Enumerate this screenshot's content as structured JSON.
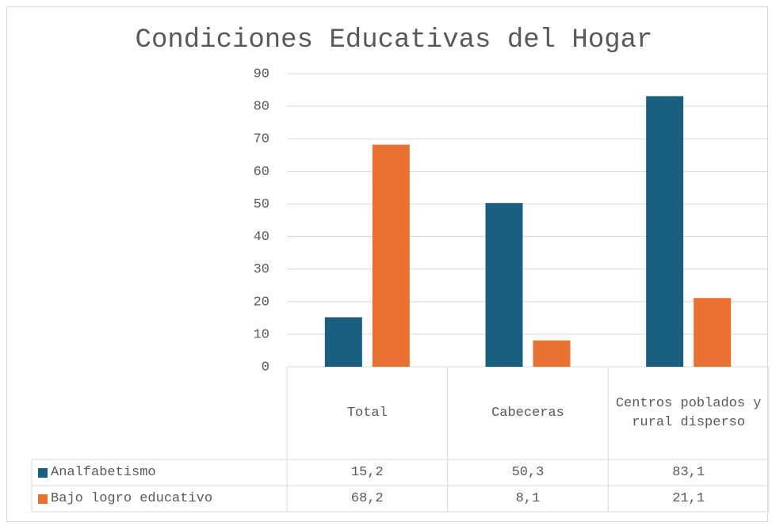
{
  "chart_data": {
    "type": "bar",
    "title": "Condiciones Educativas del Hogar",
    "categories": [
      "Total",
      "Cabeceras",
      "Centros poblados y rural disperso"
    ],
    "series": [
      {
        "name": "Analfabetismo",
        "color": "#1a5e80",
        "values": [
          15.2,
          50.3,
          83.1
        ],
        "value_labels": [
          "15,2",
          "50,3",
          "83,1"
        ]
      },
      {
        "name": "Bajo logro educativo",
        "color": "#e97132",
        "values": [
          68.2,
          8.1,
          21.1
        ],
        "value_labels": [
          "68,2",
          "8,1",
          "21,1"
        ]
      }
    ],
    "ylim": [
      0,
      90
    ],
    "yticks": [
      0,
      10,
      20,
      30,
      40,
      50,
      60,
      70,
      80,
      90
    ],
    "grid": true,
    "data_table": true
  }
}
